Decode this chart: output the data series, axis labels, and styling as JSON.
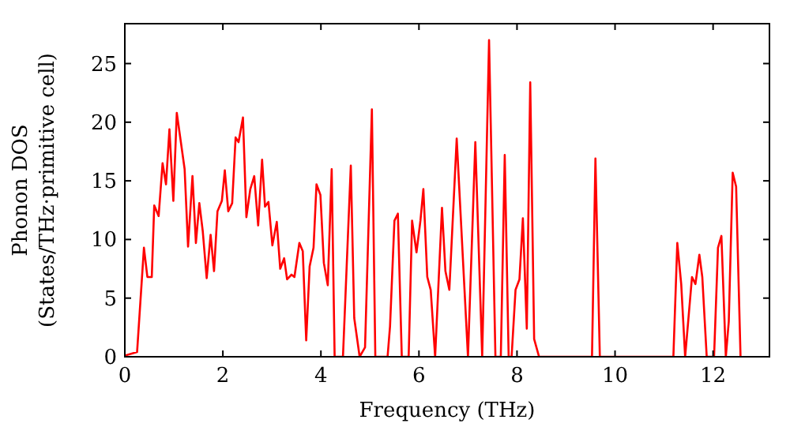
{
  "chart_data": {
    "type": "line",
    "xlabel": "Frequency (THz)",
    "ylabel": "Phonon DOS\n(States/THz·primitive cell)",
    "xlim": [
      0,
      13.15
    ],
    "ylim": [
      0,
      28.4
    ],
    "xticks": [
      0,
      2,
      4,
      6,
      8,
      10,
      12
    ],
    "yticks": [
      0,
      5,
      10,
      15,
      20,
      25
    ],
    "grid": false,
    "marker": "none",
    "line_style": "solid",
    "series": [
      {
        "color": "#ff0000",
        "x": [
          0,
          0.25,
          0.39,
          0.46,
          0.55,
          0.6,
          0.69,
          0.77,
          0.84,
          0.91,
          0.99,
          1.06,
          1.22,
          1.29,
          1.38,
          1.45,
          1.52,
          1.59,
          1.67,
          1.75,
          1.82,
          1.89,
          1.98,
          2.04,
          2.11,
          2.19,
          2.26,
          2.32,
          2.41,
          2.48,
          2.56,
          2.64,
          2.72,
          2.8,
          2.86,
          2.93,
          3.01,
          3.1,
          3.17,
          3.25,
          3.31,
          3.4,
          3.46,
          3.56,
          3.63,
          3.7,
          3.77,
          3.85,
          3.91,
          3.99,
          4.06,
          4.14,
          4.22,
          4.28,
          4.45,
          4.61,
          4.68,
          4.79,
          4.9,
          5.04,
          5.11,
          5.36,
          5.41,
          5.5,
          5.57,
          5.65,
          5.79,
          5.86,
          5.95,
          6.03,
          6.09,
          6.17,
          6.24,
          6.33,
          6.47,
          6.54,
          6.62,
          6.77,
          7.0,
          7.15,
          7.29,
          7.43,
          7.56,
          7.67,
          7.75,
          7.83,
          7.89,
          7.97,
          8.05,
          8.12,
          8.2,
          8.27,
          8.35,
          8.45,
          9.53,
          9.6,
          9.69,
          11.19,
          11.27,
          11.35,
          11.43,
          11.57,
          11.64,
          11.72,
          11.78,
          11.87,
          12.02,
          12.1,
          12.17,
          12.26,
          12.32,
          12.4,
          12.47,
          12.56
        ],
        "values": [
          0.1,
          0.4,
          9.3,
          6.8,
          6.8,
          12.9,
          12.0,
          16.5,
          14.7,
          19.4,
          13.3,
          20.8,
          16.0,
          9.4,
          15.4,
          9.7,
          13.1,
          10.7,
          6.7,
          10.4,
          7.3,
          12.4,
          13.3,
          15.9,
          12.4,
          13.1,
          18.7,
          18.3,
          20.4,
          11.9,
          14.3,
          15.4,
          11.2,
          16.8,
          12.8,
          13.2,
          9.5,
          11.5,
          7.5,
          8.4,
          6.6,
          7.0,
          6.8,
          9.7,
          9.0,
          1.4,
          7.7,
          9.3,
          14.7,
          13.8,
          8.0,
          6.1,
          16.0,
          0,
          0,
          16.3,
          3.3,
          0,
          0.8,
          21.1,
          0,
          0,
          2.6,
          11.6,
          12.2,
          0,
          0,
          11.6,
          8.9,
          11.6,
          14.3,
          6.8,
          5.7,
          0,
          12.7,
          7.3,
          5.7,
          18.6,
          0,
          18.3,
          0,
          27.0,
          0,
          0,
          17.2,
          0,
          0,
          5.7,
          6.6,
          11.8,
          2.4,
          23.4,
          1.5,
          0,
          0,
          16.9,
          0,
          0,
          9.7,
          6.2,
          0,
          6.8,
          6.2,
          8.7,
          6.8,
          0,
          0,
          9.3,
          10.3,
          0,
          3.0,
          15.7,
          14.5,
          0
        ]
      }
    ]
  }
}
